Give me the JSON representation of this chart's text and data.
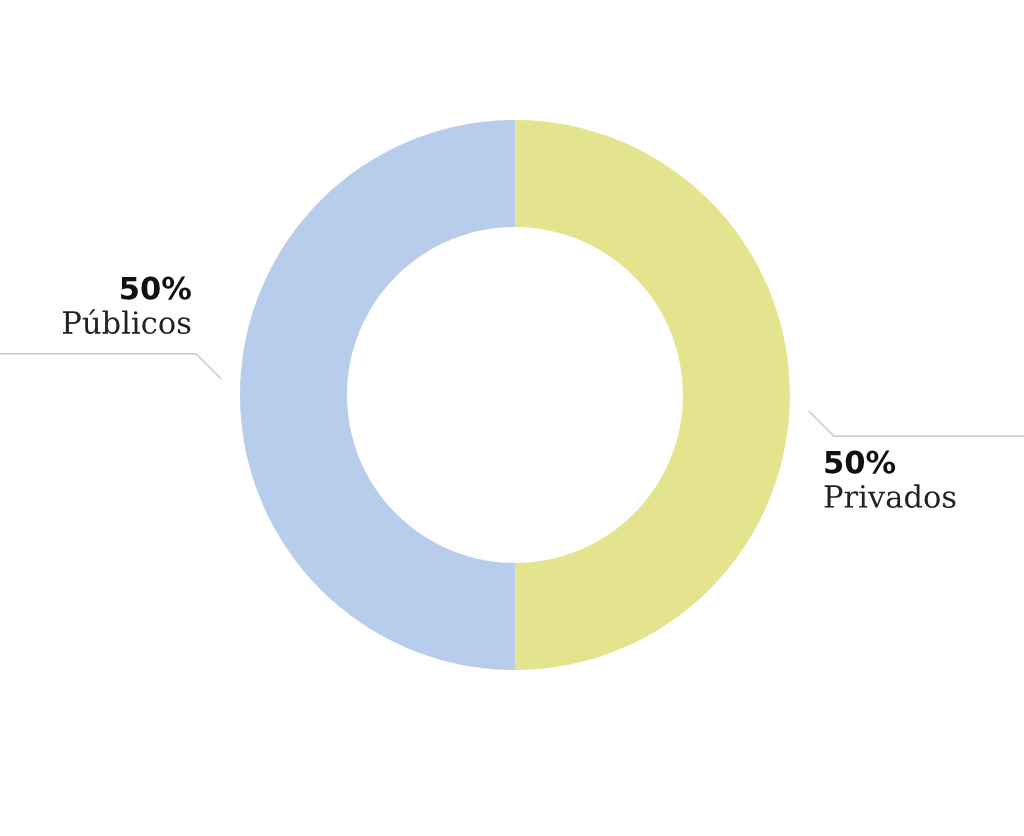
{
  "chart_data": {
    "type": "donut",
    "categories": [
      "Privados",
      "Públicos"
    ],
    "values": [
      50,
      50
    ],
    "colors": [
      "#e4e48e",
      "#b8cceb"
    ],
    "value_labels": [
      "50%",
      "50%"
    ]
  }
}
